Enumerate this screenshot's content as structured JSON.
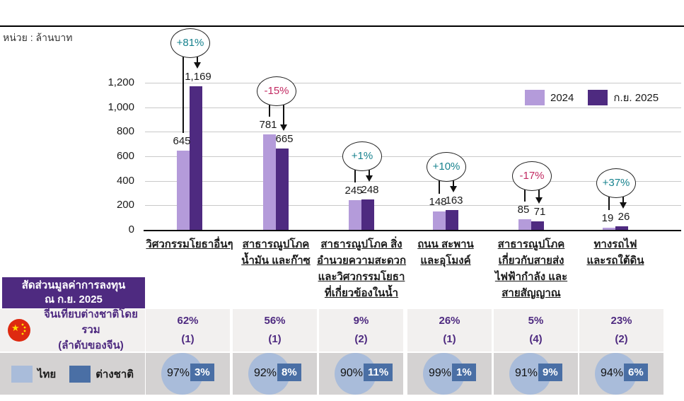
{
  "unit_label": "หน่วย : ล้านบาท",
  "colors": {
    "series_2024": "#b49bda",
    "series_2025": "#4e2a80",
    "positive_pct": "#17828e",
    "negative_pct": "#c22a62",
    "table_header_bg": "#4e2a80",
    "table_text_purple": "#4e2a80",
    "row1_bg": "#f2f0ef",
    "row2_bg": "#d4d2d2",
    "thai_blue": "#a9bcda",
    "foreign_blue": "#4a6fa5",
    "flag_red": "#de2910",
    "flag_yellow": "#ffde00"
  },
  "chart_data": {
    "type": "bar",
    "title": "",
    "unit": "ล้านบาท",
    "ylabel": "",
    "xlabel": "",
    "ylim": [
      0,
      1200
    ],
    "grid": true,
    "legend_position": "upper-right",
    "y_ticks": [
      "0",
      "200",
      "400",
      "600",
      "800",
      "1,000",
      "1,200"
    ],
    "categories": [
      "วิศวกรรมโยธาอื่นๆ",
      "สาธารณูปโภค น้ำมัน และก๊าซ",
      "สาธารณูปโภค สิ่งอำนวยความสะดวก และวิศวกรรมโยธาที่เกี่ยวข้องในน้ำ",
      "ถนน สะพาน และอุโมงค์",
      "สาธารณูปโภค เกี่ยวกับสายส่งไฟฟ้ากำลัง และสายสัญญาณ",
      "ทางรถไฟ และรถใต้ดิน"
    ],
    "category_lines": [
      [
        "วิศวกรรมโยธาอื่นๆ"
      ],
      [
        "สาธารณูปโภค",
        "น้ำมัน และก๊าซ"
      ],
      [
        "สาธารณูปโภค สิ่ง",
        "อำนวยความสะดวก",
        "และวิศวกรรมโยธา",
        "ที่เกี่ยวข้องในน้ำ"
      ],
      [
        "ถนน สะพาน",
        "และอุโมงค์"
      ],
      [
        "สาธารณูปโภค",
        "เกี่ยวกับสายส่ง",
        "ไฟฟ้ากำลัง และ",
        "สายสัญญาณ"
      ],
      [
        "ทางรถไฟ",
        "และรถใต้ดิน"
      ]
    ],
    "series": [
      {
        "name": "2024",
        "color": "#b49bda",
        "values": [
          645,
          781,
          245,
          148,
          85,
          19
        ]
      },
      {
        "name": "ก.ย. 2025",
        "color": "#4e2a80",
        "values": [
          1169,
          665,
          248,
          163,
          71,
          26
        ]
      }
    ],
    "value_labels_2024": [
      "645",
      "781",
      "245",
      "148",
      "85",
      "19"
    ],
    "value_labels_2025": [
      "1,169",
      "665",
      "248",
      "163",
      "71",
      "26"
    ],
    "pct_changes": [
      {
        "label": "+81%",
        "color": "#17828e"
      },
      {
        "label": "-15%",
        "color": "#c22a62"
      },
      {
        "label": "+1%",
        "color": "#17828e"
      },
      {
        "label": "+10%",
        "color": "#17828e"
      },
      {
        "label": "-17%",
        "color": "#c22a62"
      },
      {
        "label": "+37%",
        "color": "#17828e"
      }
    ],
    "legend": [
      {
        "label": "2024",
        "color": "#b49bda"
      },
      {
        "label": "ก.ย. 2025",
        "color": "#4e2a80"
      }
    ]
  },
  "table": {
    "header_line1": "สัดส่วนมูลค่าการลงทุน",
    "header_line2": "ณ ก.ย. 2025",
    "china_row": {
      "icon": "china-flag-icon",
      "label_line1": "จีนเทียบต่างชาติโดยรวม",
      "label_line2": "(ลำดับของจีน)",
      "values": [
        "62%",
        "56%",
        "9%",
        "26%",
        "5%",
        "23%"
      ],
      "ranks": [
        "(1)",
        "(1)",
        "(2)",
        "(1)",
        "(4)",
        "(2)"
      ]
    },
    "share_row": {
      "legend": [
        {
          "label": "ไทย",
          "color": "#a9bcda"
        },
        {
          "label": "ต่างชาติ",
          "color": "#4a6fa5"
        }
      ],
      "thai_values": [
        "97%",
        "92%",
        "90%",
        "99%",
        "91%",
        "94%"
      ],
      "foreign_values": [
        "3%",
        "8%",
        "11%",
        "1%",
        "9%",
        "6%"
      ]
    }
  }
}
